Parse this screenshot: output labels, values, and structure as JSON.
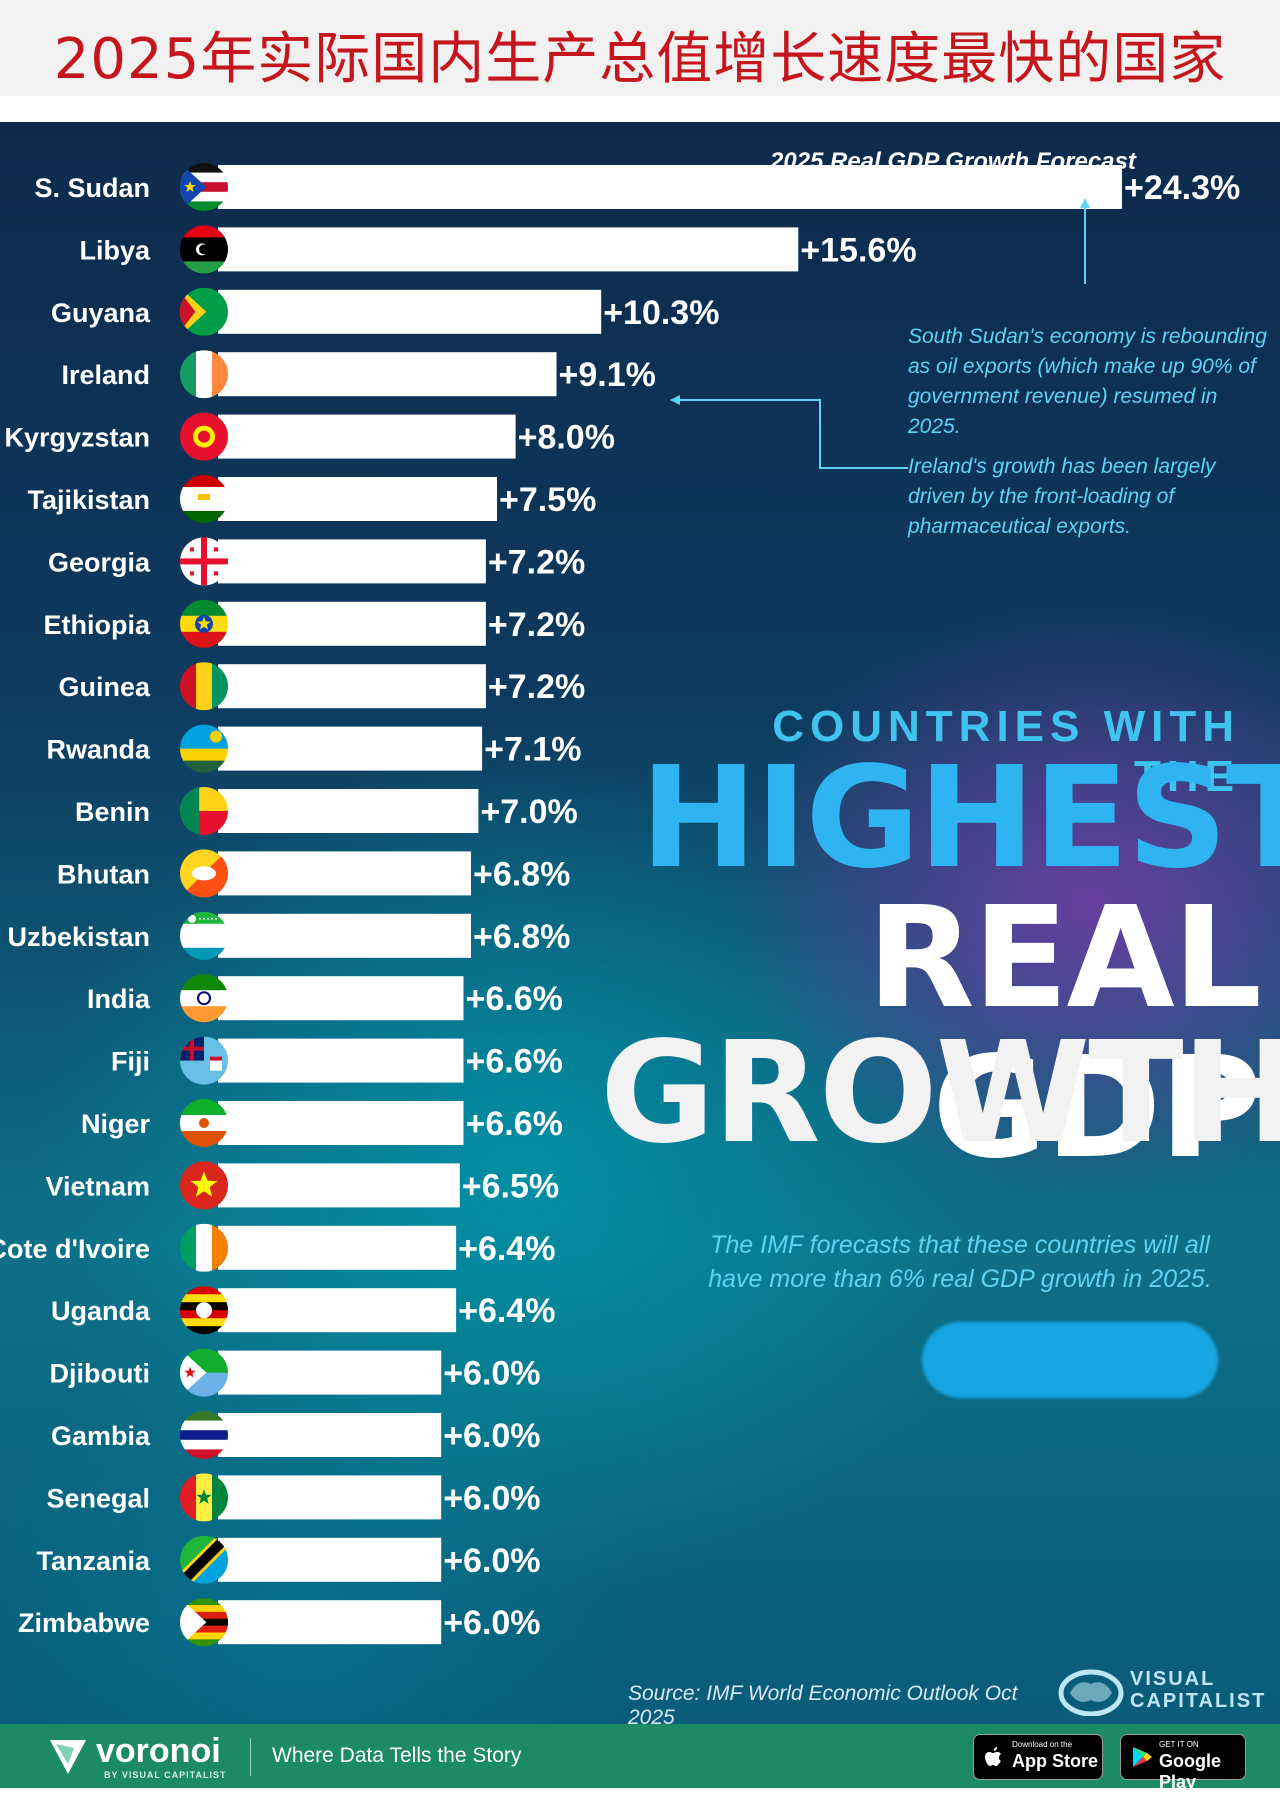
{
  "header": {
    "title": "2025年实际国内生产总值增长速度最快的国家"
  },
  "chart_data": {
    "type": "bar",
    "orientation": "horizontal",
    "title": "2025 Real GDP Growth Forecast",
    "categories": [
      "S. Sudan",
      "Libya",
      "Guyana",
      "Ireland",
      "Kyrgyzstan",
      "Tajikistan",
      "Georgia",
      "Ethiopia",
      "Guinea",
      "Rwanda",
      "Benin",
      "Bhutan",
      "Uzbekistan",
      "India",
      "Fiji",
      "Niger",
      "Vietnam",
      "Cote d'Ivoire",
      "Uganda",
      "Djibouti",
      "Gambia",
      "Senegal",
      "Tanzania",
      "Zimbabwe"
    ],
    "values": [
      24.3,
      15.6,
      10.3,
      9.1,
      8.0,
      7.5,
      7.2,
      7.2,
      7.2,
      7.1,
      7.0,
      6.8,
      6.8,
      6.6,
      6.6,
      6.6,
      6.5,
      6.4,
      6.4,
      6.0,
      6.0,
      6.0,
      6.0,
      6.0
    ],
    "value_labels": [
      "+24.3%",
      "+15.6%",
      "+10.3%",
      "+9.1%",
      "+8.0%",
      "+7.5%",
      "+7.2%",
      "+7.2%",
      "+7.2%",
      "+7.1%",
      "+7.0%",
      "+6.8%",
      "+6.8%",
      "+6.6%",
      "+6.6%",
      "+6.6%",
      "+6.5%",
      "+6.4%",
      "+6.4%",
      "+6.0%",
      "+6.0%",
      "+6.0%",
      "+6.0%",
      "+6.0%"
    ],
    "xlim": [
      0,
      24.3
    ],
    "unit": "%",
    "annotations": [
      "South Sudan's economy is rebounding as oil exports (which make up 90% of government revenue) resumed in 2025.",
      "Ireland's growth has been largely driven by the front-loading of pharmaceutical exports."
    ]
  },
  "headline": {
    "pre": "COUNTRIES WITH THE",
    "line1": "HIGHEST",
    "line2": "REAL GDP",
    "line3": "GROWTH"
  },
  "imf_note": "The IMF forecasts that these countries will all have more than 6% real GDP growth in 2025.",
  "source": "Source: IMF World Economic Outlook Oct 2025",
  "brand": {
    "visual_capitalist_line1": "VISUAL",
    "visual_capitalist_line2": "CAPITALIST"
  },
  "footer": {
    "brand": "voronoi",
    "brand_sub": "BY VISUAL CAPITALIST",
    "tagline": "Where Data Tells the Story",
    "app_store_small": "Download on the",
    "app_store_big": "App Store",
    "google_play_small": "GET IT ON",
    "google_play_big": "Google Play"
  },
  "colors": {
    "title_red": "#c4161c",
    "accent_blue": "#2fb4f2",
    "annotation": "#5fd3f5",
    "footer_green": "#1d8a66"
  },
  "flags": [
    {
      "name": "S. Sudan",
      "type": "hstripes",
      "colors": [
        "#111111",
        "#ffffff",
        "#c8102e",
        "#ffffff",
        "#078930"
      ],
      "tri": "#0f47af",
      "star": "#fcdd09"
    },
    {
      "name": "Libya",
      "type": "hstripes",
      "colors": [
        "#e70013",
        "#000000",
        "#000000",
        "#239e46"
      ],
      "emblem": "crescent"
    },
    {
      "name": "Guyana",
      "type": "solid",
      "colors": [
        "#009e49"
      ],
      "tri": "#fcd116",
      "tri2": "#ce1126"
    },
    {
      "name": "Ireland",
      "type": "vstripes",
      "colors": [
        "#169b62",
        "#ffffff",
        "#ff883e"
      ]
    },
    {
      "name": "Kyrgyzstan",
      "type": "solid",
      "colors": [
        "#e8112d"
      ],
      "emblem": "sun"
    },
    {
      "name": "Tajikistan",
      "type": "hstripes",
      "colors": [
        "#cc0000",
        "#ffffff",
        "#ffffff",
        "#006600"
      ],
      "emblem": "crown"
    },
    {
      "name": "Georgia",
      "type": "solid",
      "colors": [
        "#ffffff"
      ],
      "emblem": "cross"
    },
    {
      "name": "Ethiopia",
      "type": "hstripes",
      "colors": [
        "#078930",
        "#fcdd09",
        "#da121a"
      ],
      "emblem": "bluestar"
    },
    {
      "name": "Guinea",
      "type": "vstripes",
      "colors": [
        "#ce1126",
        "#fcd116",
        "#009460"
      ]
    },
    {
      "name": "Rwanda",
      "type": "hstripes",
      "colors": [
        "#00a1de",
        "#00a1de",
        "#fad201",
        "#20603d"
      ],
      "emblem": "sunsmall"
    },
    {
      "name": "Benin",
      "type": "benin",
      "colors": [
        "#008751",
        "#fcd116",
        "#e8112d"
      ]
    },
    {
      "name": "Bhutan",
      "type": "diag",
      "colors": [
        "#ffd520",
        "#ff4e12"
      ],
      "emblem": "dragon"
    },
    {
      "name": "Uzbekistan",
      "type": "hstripes",
      "colors": [
        "#1eb53a",
        "#ffffff",
        "#ffffff",
        "#0099b5"
      ],
      "emblem": "crescentstars"
    },
    {
      "name": "India",
      "type": "hstripes",
      "colors": [
        "#138808",
        "#ffffff",
        "#ff9933"
      ],
      "emblem": "wheel"
    },
    {
      "name": "Fiji",
      "type": "solid",
      "colors": [
        "#68bfe5"
      ],
      "emblem": "union"
    },
    {
      "name": "Niger",
      "type": "hstripes",
      "colors": [
        "#0db02b",
        "#ffffff",
        "#e05206"
      ],
      "emblem": "orangedot"
    },
    {
      "name": "Vietnam",
      "type": "solid",
      "colors": [
        "#da251d"
      ],
      "emblem": "yellowstar"
    },
    {
      "name": "Cote d'Ivoire",
      "type": "vstripes",
      "colors": [
        "#009e60",
        "#ffffff",
        "#f77f00"
      ]
    },
    {
      "name": "Uganda",
      "type": "hstripes",
      "colors": [
        "#d90000",
        "#fcdc04",
        "#000000",
        "#d90000",
        "#fcdc04",
        "#000000"
      ],
      "emblem": "whitedisc"
    },
    {
      "name": "Djibouti",
      "type": "hstripes",
      "colors": [
        "#12ad2b",
        "#6ab2e7"
      ],
      "tri": "#ffffff",
      "star": "#d7141a"
    },
    {
      "name": "Gambia",
      "type": "hstripes",
      "colors": [
        "#3a7728",
        "#ffffff",
        "#0c1c8c",
        "#ffffff",
        "#ce1126"
      ]
    },
    {
      "name": "Senegal",
      "type": "vstripes",
      "colors": [
        "#e31b23",
        "#fdef42",
        "#00853f"
      ],
      "emblem": "greenstar"
    },
    {
      "name": "Tanzania",
      "type": "tanzania",
      "colors": [
        "#00a3dd",
        "#1eb53a"
      ]
    },
    {
      "name": "Zimbabwe",
      "type": "hstripes",
      "colors": [
        "#319208",
        "#ffd200",
        "#de2010",
        "#000000",
        "#de2010",
        "#ffd200",
        "#319208"
      ],
      "tri": "#ffffff"
    }
  ]
}
